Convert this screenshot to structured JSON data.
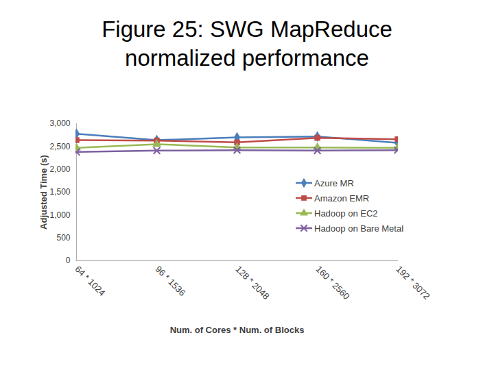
{
  "chart_data": {
    "type": "line",
    "title": "Figure 25: SWG MapReduce normalized performance",
    "x_label": "Num. of Cores * Num. of Blocks",
    "y_label": "Adjusted Time (s)",
    "categories": [
      "64 * 1024",
      "96 * 1536",
      "128 * 2048",
      "160 * 2560",
      "192 * 3072"
    ],
    "series": [
      {
        "name": "Azure MR",
        "color": "#4a7ebb",
        "marker": "diamond",
        "values": [
          2780,
          2640,
          2700,
          2720,
          2580
        ]
      },
      {
        "name": "Amazon EMR",
        "color": "#be4b48",
        "marker": "square",
        "values": [
          2640,
          2630,
          2590,
          2690,
          2660
        ]
      },
      {
        "name": "Hadoop on EC2",
        "color": "#98b954",
        "marker": "triangle",
        "values": [
          2470,
          2550,
          2480,
          2480,
          2470
        ]
      },
      {
        "name": "Hadoop on Bare Metal",
        "color": "#7d60a0",
        "marker": "x",
        "values": [
          2380,
          2410,
          2420,
          2410,
          2420
        ]
      }
    ],
    "ylim": [
      0,
      3000
    ],
    "yticks": [
      0,
      500,
      1000,
      1500,
      2000,
      2500,
      3000
    ],
    "grid": false,
    "legend": "right"
  }
}
